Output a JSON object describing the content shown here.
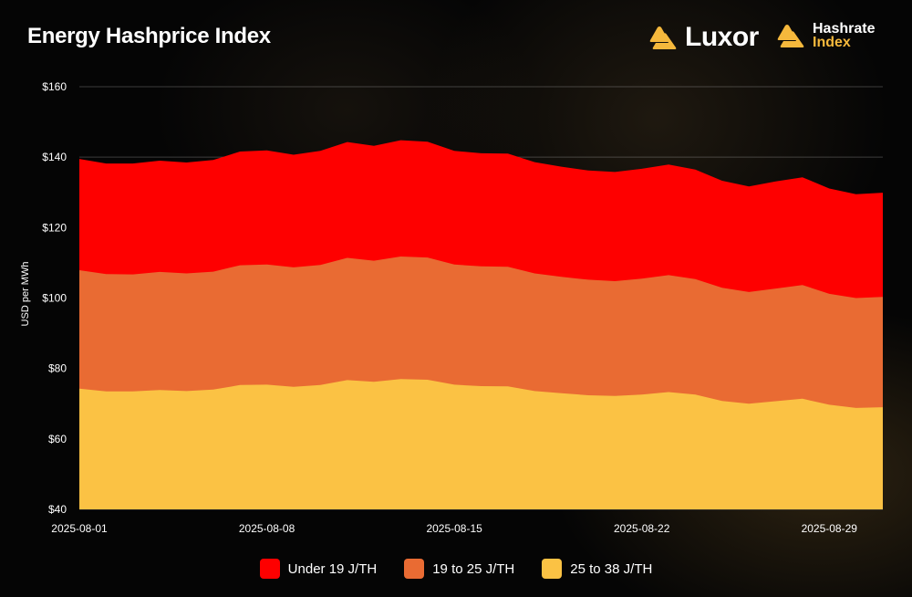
{
  "header": {
    "title": "Energy Hashprice Index",
    "brand_luxor": "Luxor",
    "brand_hashrate_line1": "Hashrate",
    "brand_hashrate_line2": "Index"
  },
  "chart_data": {
    "type": "area",
    "stacked": false,
    "title": "Energy Hashprice Index",
    "xlabel": "",
    "ylabel": "USD per MWh",
    "ylim": [
      40,
      160
    ],
    "yticks": [
      40,
      60,
      80,
      100,
      120,
      140,
      160
    ],
    "ytick_labels": [
      "$40",
      "$60",
      "$80",
      "$100",
      "$120",
      "$140",
      "$160"
    ],
    "x": [
      "2025-08-01",
      "2025-08-02",
      "2025-08-03",
      "2025-08-04",
      "2025-08-05",
      "2025-08-06",
      "2025-08-07",
      "2025-08-08",
      "2025-08-09",
      "2025-08-10",
      "2025-08-11",
      "2025-08-12",
      "2025-08-13",
      "2025-08-14",
      "2025-08-15",
      "2025-08-16",
      "2025-08-17",
      "2025-08-18",
      "2025-08-19",
      "2025-08-20",
      "2025-08-21",
      "2025-08-22",
      "2025-08-23",
      "2025-08-24",
      "2025-08-25",
      "2025-08-26",
      "2025-08-27",
      "2025-08-28",
      "2025-08-29",
      "2025-08-30",
      "2025-08-31"
    ],
    "xtick_labels": [
      "2025-08-01",
      "2025-08-08",
      "2025-08-15",
      "2025-08-22",
      "2025-08-29"
    ],
    "xtick_index": [
      0,
      7,
      14,
      21,
      28
    ],
    "series": [
      {
        "name": "Under 19 J/TH",
        "color": "#fe0000",
        "values": [
          139.5,
          138.2,
          138.2,
          139.0,
          138.5,
          139.2,
          141.6,
          141.9,
          140.7,
          141.8,
          144.3,
          143.2,
          144.8,
          144.4,
          141.8,
          141.1,
          141.0,
          138.6,
          137.3,
          136.2,
          135.8,
          136.7,
          137.9,
          136.5,
          133.3,
          131.7,
          133.1,
          134.3,
          131.1,
          129.5,
          129.9
        ]
      },
      {
        "name": "19 to 25 J/TH",
        "color": "#e96b33",
        "values": [
          107.9,
          106.8,
          106.7,
          107.4,
          107.0,
          107.5,
          109.3,
          109.5,
          108.7,
          109.4,
          111.4,
          110.6,
          111.8,
          111.5,
          109.5,
          109.0,
          108.9,
          107.0,
          106.0,
          105.2,
          104.8,
          105.5,
          106.5,
          105.4,
          102.9,
          101.7,
          102.7,
          103.7,
          101.2,
          100.0,
          100.3
        ]
      },
      {
        "name": "25 to 38 J/TH",
        "color": "#fbc244",
        "values": [
          74.3,
          73.5,
          73.5,
          73.9,
          73.6,
          74.0,
          75.3,
          75.4,
          74.8,
          75.3,
          76.7,
          76.2,
          77.0,
          76.8,
          75.4,
          75.0,
          74.9,
          73.6,
          73.0,
          72.4,
          72.2,
          72.6,
          73.3,
          72.6,
          70.8,
          70.0,
          70.7,
          71.4,
          69.7,
          68.8,
          69.0
        ]
      }
    ],
    "grid": true,
    "legend_position": "bottom-center"
  }
}
